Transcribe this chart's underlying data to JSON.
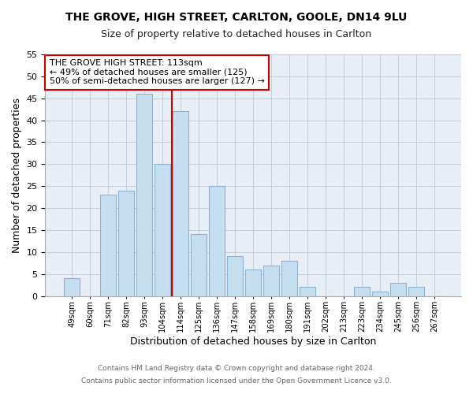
{
  "title1": "THE GROVE, HIGH STREET, CARLTON, GOOLE, DN14 9LU",
  "title2": "Size of property relative to detached houses in Carlton",
  "xlabel": "Distribution of detached houses by size in Carlton",
  "ylabel": "Number of detached properties",
  "categories": [
    "49sqm",
    "60sqm",
    "71sqm",
    "82sqm",
    "93sqm",
    "104sqm",
    "114sqm",
    "125sqm",
    "136sqm",
    "147sqm",
    "158sqm",
    "169sqm",
    "180sqm",
    "191sqm",
    "202sqm",
    "213sqm",
    "223sqm",
    "234sqm",
    "245sqm",
    "256sqm",
    "267sqm"
  ],
  "values": [
    4,
    0,
    23,
    24,
    46,
    30,
    42,
    14,
    25,
    9,
    6,
    7,
    8,
    2,
    0,
    0,
    2,
    1,
    3,
    2,
    0
  ],
  "bar_color": "#c5dff0",
  "bar_edge_color": "#8ab4d4",
  "vline_color": "#cc0000",
  "ylim": [
    0,
    55
  ],
  "yticks": [
    0,
    5,
    10,
    15,
    20,
    25,
    30,
    35,
    40,
    45,
    50,
    55
  ],
  "annotation_title": "THE GROVE HIGH STREET: 113sqm",
  "annotation_line1": "← 49% of detached houses are smaller (125)",
  "annotation_line2": "50% of semi-detached houses are larger (127) →",
  "annotation_box_color": "#ffffff",
  "annotation_box_edge": "#cc0000",
  "footer1": "Contains HM Land Registry data © Crown copyright and database right 2024.",
  "footer2": "Contains public sector information licensed under the Open Government Licence v3.0.",
  "background_color": "#ffffff",
  "plot_bg_color": "#e8eef5"
}
